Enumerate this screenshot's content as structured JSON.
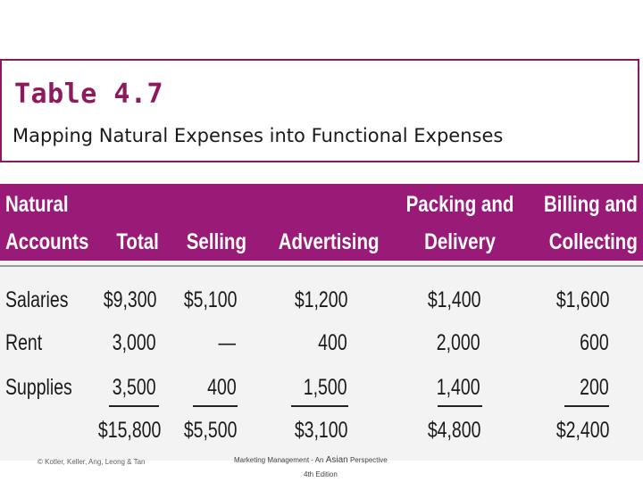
{
  "title": {
    "main": "Table 4.7",
    "subtitle": "Mapping Natural Expenses into Functional Expenses"
  },
  "table": {
    "headers": {
      "natural": [
        "Natural",
        "Accounts"
      ],
      "total": "Total",
      "selling": "Selling",
      "advertising": "Advertising",
      "packing": [
        "Packing and",
        "Delivery"
      ],
      "billing": [
        "Billing and",
        "Collecting"
      ]
    },
    "rows": [
      {
        "label": "Salaries",
        "total": "$9,300",
        "selling": "$5,100",
        "advertising": "$1,200",
        "packing": "$1,400",
        "billing": "$1,600"
      },
      {
        "label": "Rent",
        "total": "3,000",
        "selling": "—",
        "advertising": "400",
        "packing": "2,000",
        "billing": "600"
      },
      {
        "label": "Supplies",
        "total": "3,500",
        "selling": "400",
        "advertising": "1,500",
        "packing": "1,400",
        "billing": "200"
      }
    ],
    "totals": {
      "total": "$15,800",
      "selling": "$5,500",
      "advertising": "$3,100",
      "packing": "$4,800",
      "billing": "$2,400"
    }
  },
  "footer": {
    "copyright": "© Kotler, Keller, Ang, Leong & Tan",
    "book_prefix": "Marketing Management - An ",
    "book_asian": "Asian",
    "book_suffix": " Perspective",
    "edition": "4th Edition"
  }
}
